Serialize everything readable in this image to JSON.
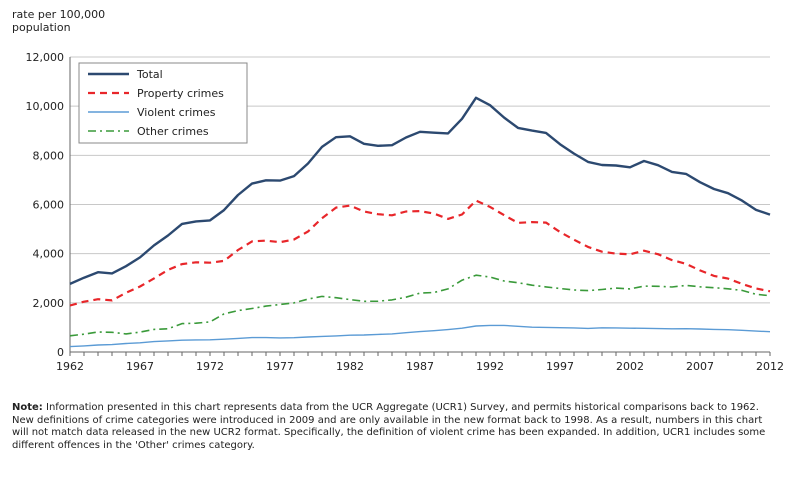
{
  "chart_data": {
    "type": "line",
    "title": "",
    "ylabel": "rate per 100,000\npopulation",
    "xlabel": "",
    "ylim": [
      0,
      12000
    ],
    "xlim": [
      1962,
      2012
    ],
    "yticks": [
      0,
      2000,
      4000,
      6000,
      8000,
      10000,
      12000
    ],
    "ytick_labels": [
      "0",
      "2,000",
      "4,000",
      "6,000",
      "8,000",
      "10,000",
      "12,000"
    ],
    "xticks": [
      1962,
      1967,
      1972,
      1977,
      1982,
      1987,
      1992,
      1997,
      2002,
      2007,
      2012
    ],
    "xtick_labels": [
      "1962",
      "1967",
      "1972",
      "1977",
      "1982",
      "1987",
      "1992",
      "1997",
      "2002",
      "2007",
      "2012"
    ],
    "grid": "horizontal",
    "legend_position": "top-left",
    "x": [
      1962,
      1963,
      1964,
      1965,
      1966,
      1967,
      1968,
      1969,
      1970,
      1971,
      1972,
      1973,
      1974,
      1975,
      1976,
      1977,
      1978,
      1979,
      1980,
      1981,
      1982,
      1983,
      1984,
      1985,
      1986,
      1987,
      1988,
      1989,
      1990,
      1991,
      1992,
      1993,
      1994,
      1995,
      1996,
      1997,
      1998,
      1999,
      2000,
      2001,
      2002,
      2003,
      2004,
      2005,
      2006,
      2007,
      2008,
      2009,
      2010,
      2011,
      2012
    ],
    "series": [
      {
        "name": "Total",
        "color": "#2c4970",
        "dash": "solid",
        "values": [
          2771,
          3022,
          3245,
          3199,
          3491,
          3850,
          4336,
          4737,
          5212,
          5311,
          5355,
          5773,
          6387,
          6852,
          6984,
          6971,
          7154,
          7666,
          8343,
          8736,
          8773,
          8470,
          8387,
          8413,
          8727,
          8957,
          8919,
          8892,
          9485,
          10342,
          10040,
          9538,
          9114,
          9008,
          8914,
          8453,
          8072,
          7733,
          7607,
          7587,
          7512,
          7770,
          7600,
          7325,
          7245,
          6908,
          6631,
          6461,
          6159,
          5779,
          5588
        ]
      },
      {
        "name": "Property crimes",
        "color": "#e8262a",
        "dash": "dashed",
        "values": [
          1891,
          2047,
          2146,
          2099,
          2407,
          2664,
          2992,
          3340,
          3577,
          3648,
          3634,
          3704,
          4151,
          4498,
          4533,
          4466,
          4577,
          4903,
          5444,
          5873,
          5955,
          5717,
          5607,
          5560,
          5714,
          5731,
          5630,
          5414,
          5593,
          6160,
          5904,
          5570,
          5251,
          5283,
          5264,
          4880,
          4569,
          4276,
          4081,
          4004,
          3974,
          4122,
          3977,
          3737,
          3588,
          3321,
          3097,
          2984,
          2772,
          2582,
          2469
        ]
      },
      {
        "name": "Violent crimes",
        "color": "#5b9bd5",
        "dash": "solid",
        "values": [
          221,
          249,
          284,
          299,
          347,
          376,
          423,
          453,
          481,
          492,
          497,
          519,
          553,
          585,
          584,
          572,
          580,
          610,
          636,
          654,
          685,
          692,
          714,
          735,
          785,
          829,
          868,
          911,
          970,
          1059,
          1084,
          1081,
          1046,
          1007,
          1000,
          990,
          981,
          959,
          984,
          982,
          970,
          966,
          951,
          943,
          949,
          935,
          919,
          906,
          881,
          849,
          827
        ]
      },
      {
        "name": "Other crimes",
        "color": "#3a9a3a",
        "dash": "dashdot",
        "values": [
          659,
          726,
          815,
          801,
          737,
          810,
          921,
          944,
          1154,
          1171,
          1224,
          1550,
          1683,
          1769,
          1867,
          1933,
          1997,
          2153,
          2263,
          2209,
          2133,
          2061,
          2066,
          2118,
          2228,
          2397,
          2421,
          2567,
          2922,
          3123,
          3052,
          2887,
          2817,
          2718,
          2650,
          2583,
          2522,
          2498,
          2542,
          2601,
          2568,
          2682,
          2672,
          2645,
          2708,
          2652,
          2615,
          2571,
          2506,
          2348,
          2292
        ]
      }
    ]
  },
  "note": {
    "label": "Note:",
    "text": " Information presented in this chart represents data from the UCR Aggregate (UCR1) Survey, and permits historical comparisons back to 1962. New definitions of crime categories were introduced in 2009 and are only available in the new format back to 1998. As a result, numbers in this chart will not match data released in the new UCR2 format. Specifically, the definition of violent crime has been expanded. In addition, UCR1 includes some different offences in the 'Other' crimes category."
  }
}
